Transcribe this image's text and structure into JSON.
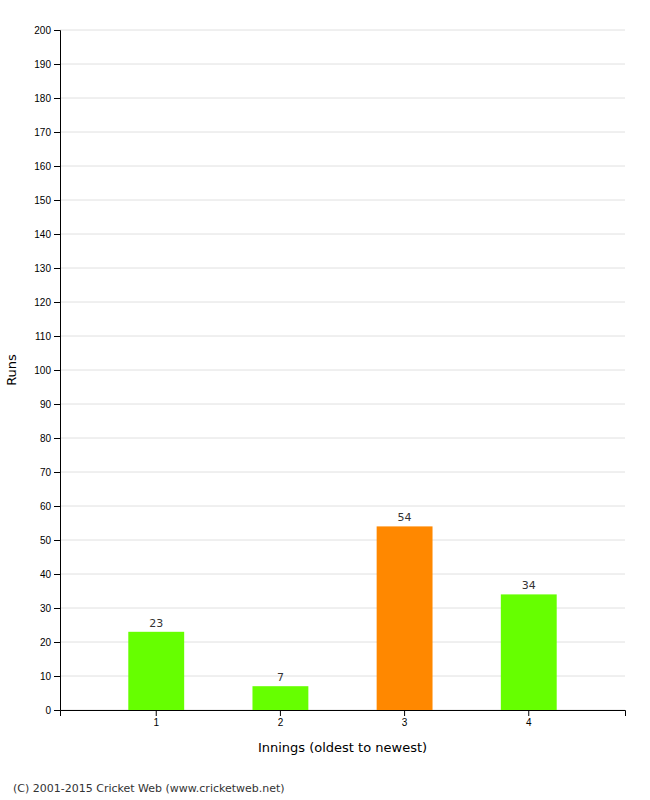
{
  "chart_data": {
    "type": "bar",
    "categories": [
      "1",
      "2",
      "3",
      "4"
    ],
    "values": [
      23,
      7,
      54,
      34
    ],
    "colors": [
      "#66ff00",
      "#66ff00",
      "#ff8800",
      "#66ff00"
    ],
    "data_labels": true,
    "xlabel": "Innings (oldest to newest)",
    "ylabel": "Runs",
    "ylim": [
      0,
      200
    ],
    "yticks": [
      0,
      10,
      20,
      30,
      40,
      50,
      60,
      70,
      80,
      90,
      100,
      110,
      120,
      130,
      140,
      150,
      160,
      170,
      180,
      190,
      200
    ],
    "grid": true,
    "footer": "(C) 2001-2015 Cricket Web (www.cricketweb.net)"
  }
}
